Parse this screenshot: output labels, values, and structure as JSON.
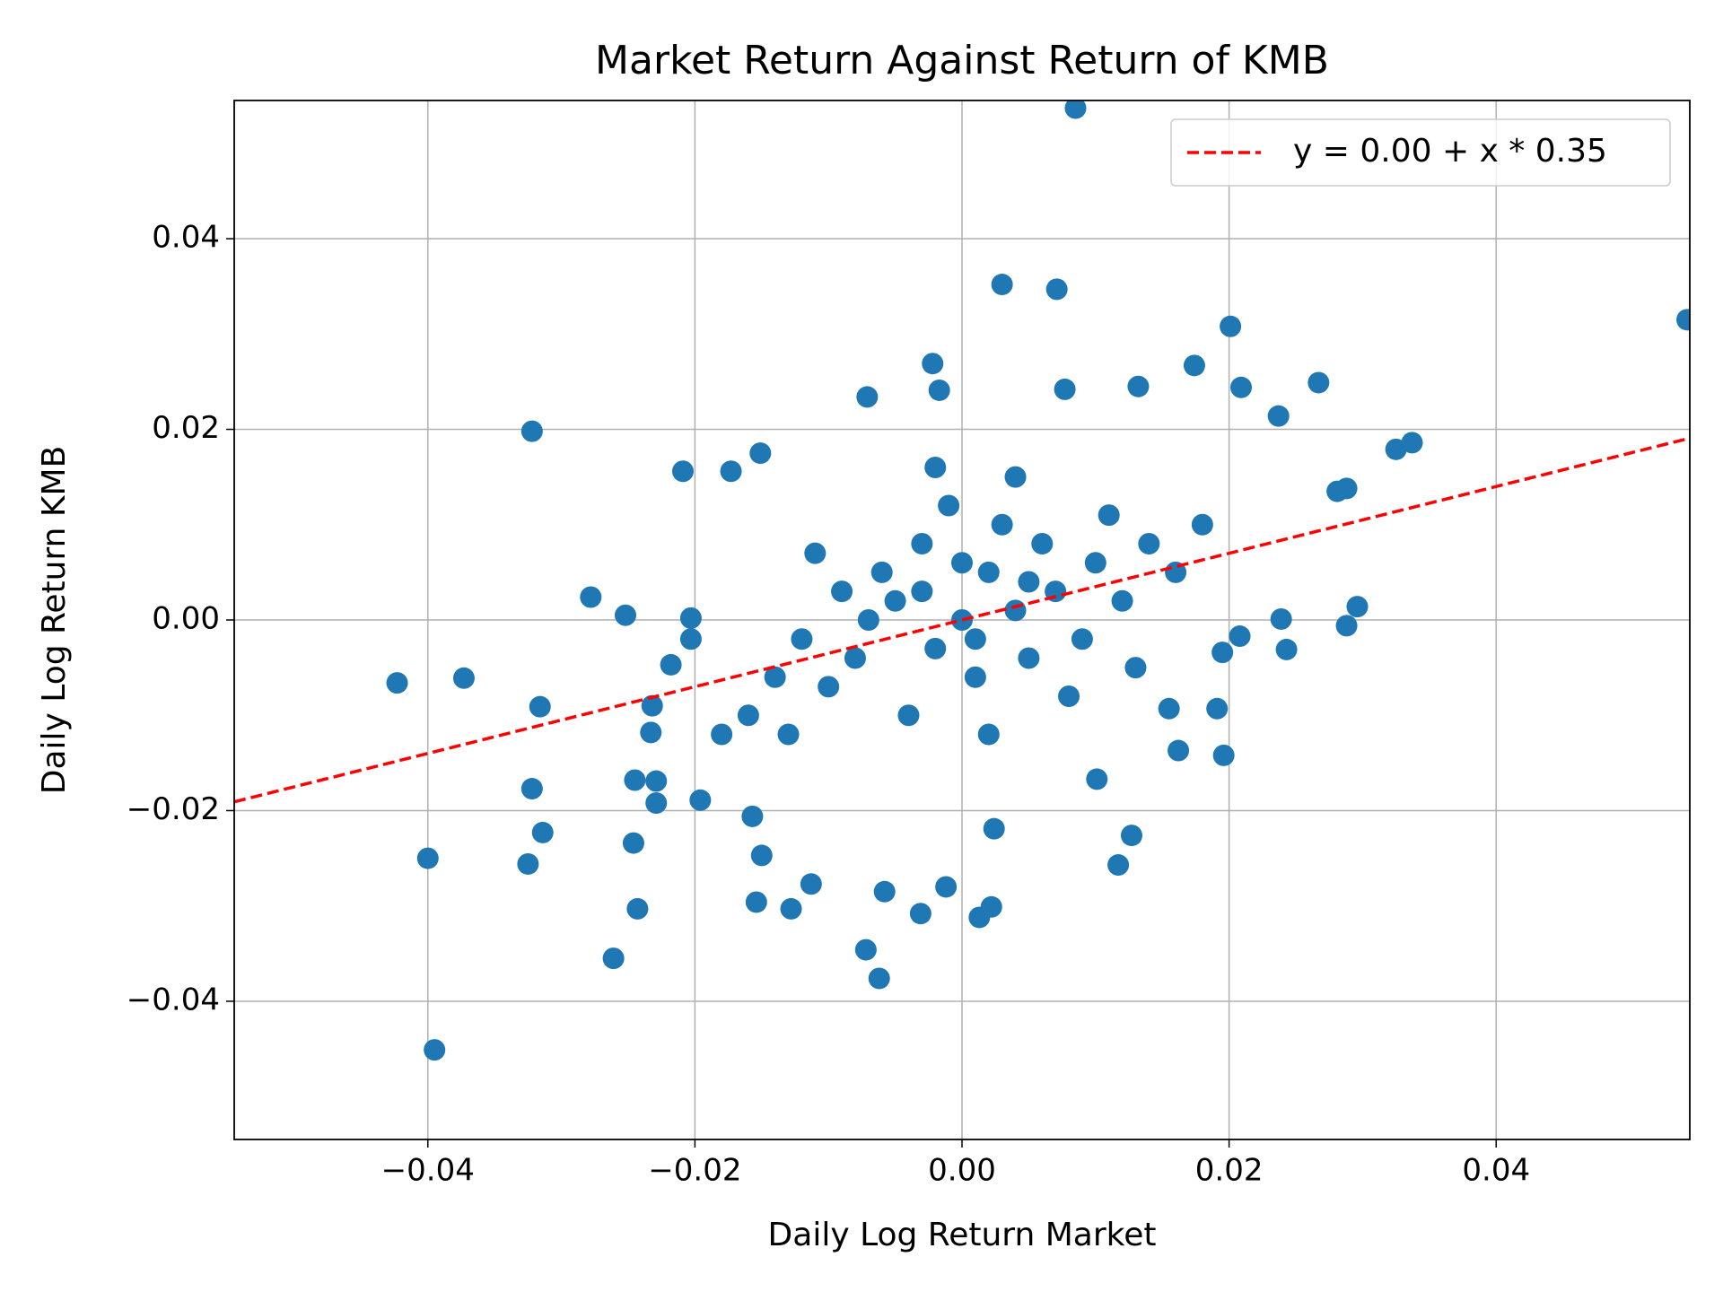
{
  "chart_data": {
    "type": "scatter",
    "title": "Market Return Against Return of KMB",
    "xlabel": "Daily Log Return Market",
    "ylabel": "Daily Log Return KMB",
    "xlim": [
      -0.0545,
      0.0545
    ],
    "ylim": [
      -0.0545,
      0.0545
    ],
    "xticks": [
      {
        "value": -0.04,
        "label": "−0.04"
      },
      {
        "value": -0.02,
        "label": "−0.02"
      },
      {
        "value": 0,
        "label": "0.00"
      },
      0.02,
      0.04
    ],
    "yticks": [
      {
        "value": -0.04,
        "label": "−0.04"
      },
      {
        "value": -0.02,
        "label": "−0.02"
      },
      {
        "value": 0,
        "label": "0.00"
      },
      0.02,
      0.04
    ],
    "grid": true,
    "legend": "upper right",
    "series": [
      {
        "color": "#1f77b4",
        "x": [
          0.0085,
          0.0543,
          0.003,
          0.0071,
          0.0201,
          -0.0322,
          -0.0209,
          -0.0423,
          -0.0373,
          -0.04,
          -0.0395,
          -0.0316,
          -0.0322,
          -0.0314,
          -0.0325,
          -0.0278,
          -0.0252,
          -0.0261,
          -0.0243,
          -0.0246,
          -0.0245,
          -0.0229,
          -0.0229,
          -0.0233,
          -0.0232,
          -0.0196,
          -0.0203,
          -0.0203,
          -0.0218,
          -0.0062,
          -0.0072,
          -0.0058,
          -0.0031,
          -0.0012,
          0.0013,
          0.0022,
          0.0117,
          0.0127,
          0.0101,
          0.0196,
          0.0162,
          0.0288,
          0.0296,
          0.0239,
          0.0243,
          0.0325,
          0.0337,
          0.0281,
          0.0288,
          0.0267,
          0.0237,
          0.0209,
          0.0174,
          0.0132,
          0.0077,
          -0.0022,
          -0.0017,
          -0.0071,
          -0.0151,
          -0.0173,
          -0.0128,
          -0.0154,
          -0.0113,
          -0.015,
          -0.0157,
          0.0024,
          0.0191,
          0.0155,
          0.0195,
          0.0208,
          -0.005,
          0.002,
          -0.002,
          0.004,
          -0.008,
          0.007,
          0.001,
          -0.003,
          0.005,
          -0.006,
          0.01,
          -0.01,
          0.003,
          -0.001,
          0.012,
          -0.012,
          0.008,
          -0.004,
          0,
          0.006,
          -0.007,
          0.014,
          -0.014,
          0.009,
          -0.009,
          0.002,
          0.016,
          -0.016,
          0.011,
          -0.011,
          0.004,
          -0.002,
          0.018,
          -0.018,
          0.013,
          -0.013,
          0,
          0.001,
          -0.003,
          0.005
        ],
        "values": [
          0.0537,
          0.0315,
          0.0352,
          0.0347,
          0.0308,
          0.0198,
          0.0156,
          -0.0066,
          -0.0061,
          -0.025,
          -0.0451,
          -0.0091,
          -0.0177,
          -0.0223,
          -0.0256,
          0.0024,
          0.0005,
          -0.0355,
          -0.0303,
          -0.0234,
          -0.0168,
          -0.0169,
          -0.0192,
          -0.0118,
          -0.009,
          -0.0189,
          0.0002,
          -0.002,
          -0.0047,
          -0.0376,
          -0.0346,
          -0.0285,
          -0.0308,
          -0.028,
          -0.0312,
          -0.0301,
          -0.0257,
          -0.0226,
          -0.0167,
          -0.0142,
          -0.0137,
          -0.0006,
          0.0014,
          0.0001,
          -0.0031,
          0.0179,
          0.0186,
          0.0135,
          0.0138,
          0.0249,
          0.0214,
          0.0244,
          0.0267,
          0.0245,
          0.0242,
          0.0269,
          0.0241,
          0.0234,
          0.0175,
          0.0156,
          -0.0303,
          -0.0296,
          -0.0277,
          -0.0247,
          -0.0206,
          -0.0219,
          -0.0093,
          -0.0093,
          -0.0034,
          -0.0017,
          0.002,
          0.005,
          -0.003,
          0.001,
          -0.004,
          0.003,
          -0.006,
          0.008,
          -0.004,
          0.005,
          0.006,
          -0.007,
          0.01,
          0.012,
          0.002,
          -0.002,
          -0.008,
          -0.01,
          0,
          0.008,
          0,
          0.008,
          -0.006,
          -0.002,
          0.003,
          -0.012,
          0.005,
          -0.01,
          0.011,
          0.007,
          0.015,
          0.016,
          0.01,
          -0.012,
          -0.005,
          -0.012,
          0.006,
          -0.002,
          0.003,
          0.004
        ]
      }
    ],
    "fit": {
      "intercept": 0.0,
      "slope": 0.35,
      "label": "y = 0.00 + x * 0.35",
      "color": "#ff0000"
    }
  }
}
